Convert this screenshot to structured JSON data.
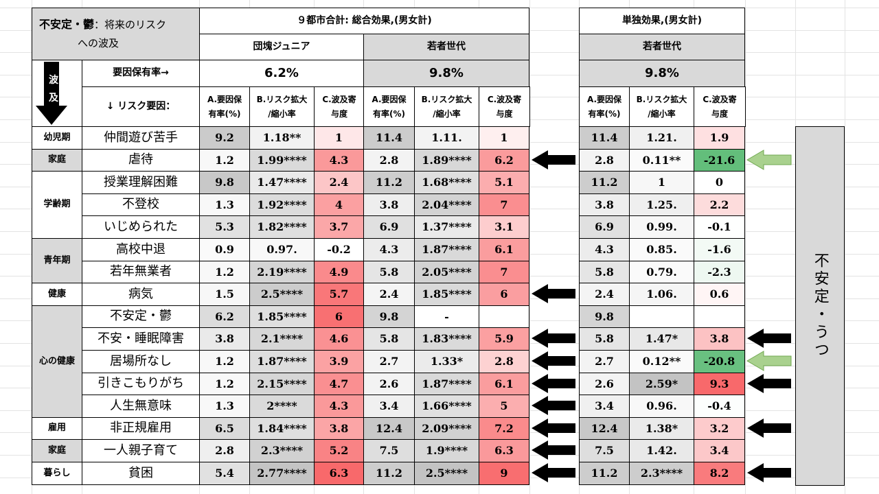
{
  "header": {
    "title_line1": "不安定・鬱",
    "title_line1_suffix": "：将来のリスク",
    "title_line2": "への波及",
    "main_group": "９都市合計: 総合効果,(男女計)",
    "solo_group": "単独効果,(男女計)",
    "dankai": "団塊ジュニア",
    "wakamono": "若者世代",
    "wakamono_solo": "若者世代",
    "hakyu_vertical": "波及",
    "rate_label": "要因保有率→",
    "risk_label": "↓ リスク要因：",
    "rate_dankai": "6.2%",
    "rate_wakamono": "9.8%",
    "rate_solo": "9.8%",
    "col_a": [
      "A.要因保",
      "有率(%)"
    ],
    "col_b": [
      "B.リスク拡大",
      "/縮小率"
    ],
    "col_c": [
      "C.波及寄",
      "与度"
    ]
  },
  "side_label": "不安定・うつ",
  "colors": {
    "heat_max": "#f8696b",
    "green_strong": "#63be7b",
    "arrow_green": "#a9d18e",
    "gray_header": "#d9d9d9"
  },
  "sections": [
    {
      "name": "幼児期",
      "rows": 1
    },
    {
      "name": "家庭",
      "rows": 1
    },
    {
      "name": "学齢期",
      "rows": 3
    },
    {
      "name": "青年期",
      "rows": 2
    },
    {
      "name": "健康",
      "rows": 1
    },
    {
      "name": "心の健康",
      "rows": 5
    },
    {
      "name": "雇用",
      "rows": 1
    },
    {
      "name": "家庭",
      "rows": 1
    },
    {
      "name": "暮らし",
      "rows": 1
    }
  ],
  "rows": [
    {
      "item": "仲間遊び苦手",
      "d": [
        "9.2",
        "1.18**",
        "1"
      ],
      "w": [
        "11.4",
        "1.11.",
        "1"
      ],
      "s": [
        "11.4",
        "1.21.",
        "1.9"
      ],
      "wc": 1,
      "sc": 1.9,
      "arrow_main": false,
      "arrow_solo": ""
    },
    {
      "item": "虐待",
      "d": [
        "1.2",
        "1.99****",
        "4.3"
      ],
      "w": [
        "2.8",
        "1.89****",
        "6.2"
      ],
      "s": [
        "2.8",
        "0.11**",
        "-21.6"
      ],
      "wc": 6.2,
      "sc": -21.6,
      "arrow_main": true,
      "arrow_solo": "green"
    },
    {
      "item": "授業理解困難",
      "d": [
        "9.8",
        "1.47****",
        "2.4"
      ],
      "w": [
        "11.2",
        "1.68****",
        "5.1"
      ],
      "s": [
        "11.2",
        "1",
        "0"
      ],
      "wc": 5.1,
      "sc": 0,
      "arrow_main": false,
      "arrow_solo": ""
    },
    {
      "item": "不登校",
      "d": [
        "1.3",
        "1.92****",
        "4"
      ],
      "w": [
        "3.8",
        "2.04****",
        "7"
      ],
      "s": [
        "3.8",
        "1.25.",
        "2.2"
      ],
      "wc": 7,
      "sc": 2.2,
      "arrow_main": false,
      "arrow_solo": ""
    },
    {
      "item": "いじめられた",
      "d": [
        "5.3",
        "1.82****",
        "3.7"
      ],
      "w": [
        "6.9",
        "1.37****",
        "3.1"
      ],
      "s": [
        "6.9",
        "0.99.",
        "-0.1"
      ],
      "wc": 3.1,
      "sc": -0.1,
      "arrow_main": false,
      "arrow_solo": ""
    },
    {
      "item": "高校中退",
      "d": [
        "0.9",
        "0.97.",
        "-0.2"
      ],
      "w": [
        "4.3",
        "1.87****",
        "6.1"
      ],
      "s": [
        "4.3",
        "0.85.",
        "-1.6"
      ],
      "wc": 6.1,
      "sc": -1.6,
      "arrow_main": false,
      "arrow_solo": ""
    },
    {
      "item": "若年無業者",
      "d": [
        "1.2",
        "2.19****",
        "4.9"
      ],
      "w": [
        "5.8",
        "2.05****",
        "7"
      ],
      "s": [
        "5.8",
        "0.79.",
        "-2.3"
      ],
      "wc": 7,
      "sc": -2.3,
      "arrow_main": false,
      "arrow_solo": ""
    },
    {
      "item": "病気",
      "d": [
        "1.5",
        "2.5****",
        "5.7"
      ],
      "w": [
        "2.4",
        "1.85****",
        "6"
      ],
      "s": [
        "2.4",
        "1.06.",
        "0.6"
      ],
      "wc": 6,
      "sc": 0.6,
      "arrow_main": true,
      "arrow_solo": ""
    },
    {
      "item": "不安定・鬱",
      "d": [
        "6.2",
        "1.85****",
        "6"
      ],
      "w": [
        "9.8",
        "-",
        ""
      ],
      "s": [
        "9.8",
        "",
        ""
      ],
      "wc": null,
      "sc": null,
      "arrow_main": false,
      "arrow_solo": ""
    },
    {
      "item": "不安・睡眠障害",
      "d": [
        "3.8",
        "2.1****",
        "4.6"
      ],
      "w": [
        "5.8",
        "1.83****",
        "5.9"
      ],
      "s": [
        "5.8",
        "1.47*",
        "3.8"
      ],
      "wc": 5.9,
      "sc": 3.8,
      "arrow_main": true,
      "arrow_solo": "black"
    },
    {
      "item": "居場所なし",
      "d": [
        "1.2",
        "1.87****",
        "3.9"
      ],
      "w": [
        "2.7",
        "1.33*",
        "2.8"
      ],
      "s": [
        "2.7",
        "0.12**",
        "-20.8"
      ],
      "wc": 2.8,
      "sc": -20.8,
      "arrow_main": true,
      "arrow_solo": "green"
    },
    {
      "item": "引きこもりがち",
      "d": [
        "1.2",
        "2.15****",
        "4.7"
      ],
      "w": [
        "2.6",
        "1.87****",
        "6.1"
      ],
      "s": [
        "2.6",
        "2.59*",
        "9.3"
      ],
      "wc": 6.1,
      "sc": 9.3,
      "arrow_main": true,
      "arrow_solo": "black"
    },
    {
      "item": "人生無意味",
      "d": [
        "1.3",
        "2****",
        "4.3"
      ],
      "w": [
        "3.4",
        "1.66****",
        "5"
      ],
      "s": [
        "3.4",
        "0.96.",
        "-0.4"
      ],
      "wc": 5,
      "sc": -0.4,
      "arrow_main": true,
      "arrow_solo": ""
    },
    {
      "item": "非正規雇用",
      "d": [
        "6.5",
        "1.84****",
        "3.8"
      ],
      "w": [
        "12.4",
        "2.09****",
        "7.2"
      ],
      "s": [
        "12.4",
        "1.38*",
        "3.2"
      ],
      "wc": 7.2,
      "sc": 3.2,
      "arrow_main": true,
      "arrow_solo": "black"
    },
    {
      "item": "一人親子育て",
      "d": [
        "2.8",
        "2.3****",
        "5.2"
      ],
      "w": [
        "7.5",
        "1.9****",
        "6.3"
      ],
      "s": [
        "7.5",
        "1.42.",
        "3.4"
      ],
      "wc": 6.3,
      "sc": 3.4,
      "arrow_main": true,
      "arrow_solo": ""
    },
    {
      "item": "貧困",
      "d": [
        "5.4",
        "2.77****",
        "6.3"
      ],
      "w": [
        "11.2",
        "2.5****",
        "9"
      ],
      "s": [
        "11.2",
        "2.3****",
        "8.2"
      ],
      "wc": 9,
      "sc": 8.2,
      "arrow_main": true,
      "arrow_solo": "black"
    }
  ]
}
